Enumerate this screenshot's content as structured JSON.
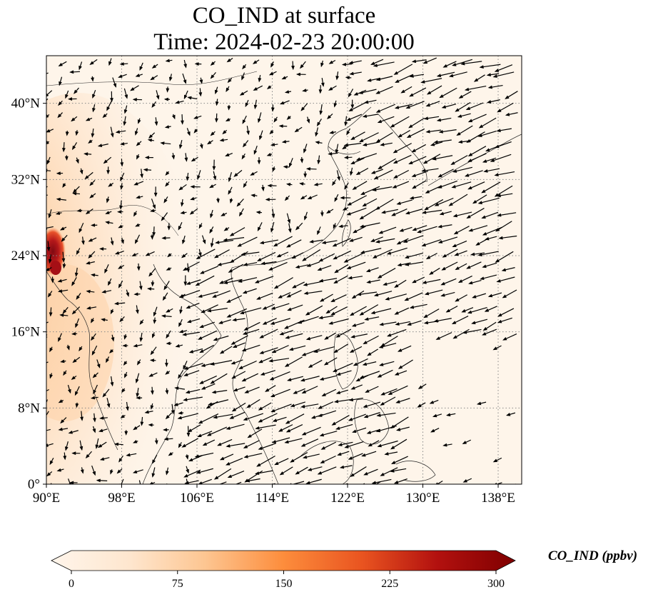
{
  "title": {
    "line1": "CO_IND at surface",
    "line2": "Time: 2024-02-23 20:00:00"
  },
  "map": {
    "variable": "CO_IND",
    "level": "surface",
    "lon_range": [
      90,
      140.5
    ],
    "lat_range": [
      0,
      45
    ],
    "x_ticks": [
      {
        "value": 90,
        "label": "90°E"
      },
      {
        "value": 98,
        "label": "98°E"
      },
      {
        "value": 106,
        "label": "106°E"
      },
      {
        "value": 114,
        "label": "114°E"
      },
      {
        "value": 122,
        "label": "122°E"
      },
      {
        "value": 130,
        "label": "130°E"
      },
      {
        "value": 138,
        "label": "138°E"
      }
    ],
    "y_ticks": [
      {
        "value": 0,
        "label": "0°"
      },
      {
        "value": 8,
        "label": "8°N"
      },
      {
        "value": 16,
        "label": "16°N"
      },
      {
        "value": 24,
        "label": "24°N"
      },
      {
        "value": 32,
        "label": "32°N"
      },
      {
        "value": 40,
        "label": "40°N"
      }
    ],
    "gridlines": "dotted",
    "overlay": "wind vectors (quiver)",
    "hotspot": {
      "lon": 90.5,
      "lat": 24.5,
      "value_ppbv": 270
    }
  },
  "colorbar": {
    "label": "CO_IND (ppbv)",
    "min": 0,
    "max": 300,
    "extend": "both",
    "colormap": [
      "#fff5eb",
      "#fdd8b3",
      "#fdae6b",
      "#f16913",
      "#d94801",
      "#a50f15",
      "#67000d"
    ],
    "ticks": [
      {
        "value": 0,
        "label": "0"
      },
      {
        "value": 75,
        "label": "75"
      },
      {
        "value": 150,
        "label": "150"
      },
      {
        "value": 225,
        "label": "225"
      },
      {
        "value": 300,
        "label": "300"
      }
    ]
  }
}
